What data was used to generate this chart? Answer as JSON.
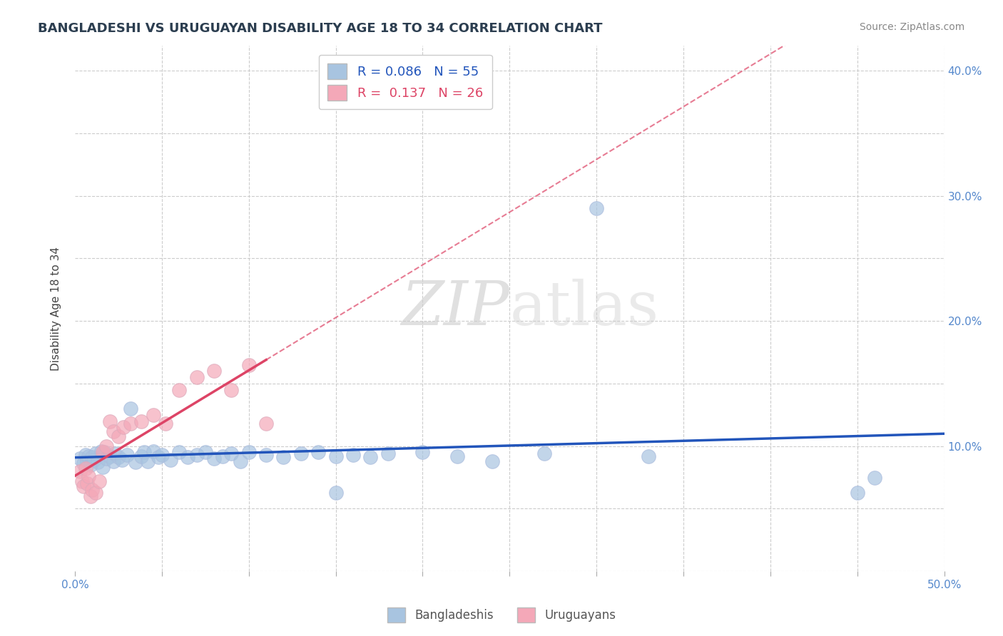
{
  "title": "BANGLADESHI VS URUGUAYAN DISABILITY AGE 18 TO 34 CORRELATION CHART",
  "source_text": "Source: ZipAtlas.com",
  "ylabel": "Disability Age 18 to 34",
  "xlim": [
    0.0,
    0.5
  ],
  "ylim": [
    0.0,
    0.42
  ],
  "xticks": [
    0.0,
    0.05,
    0.1,
    0.15,
    0.2,
    0.25,
    0.3,
    0.35,
    0.4,
    0.45,
    0.5
  ],
  "yticks": [
    0.0,
    0.05,
    0.1,
    0.15,
    0.2,
    0.25,
    0.3,
    0.35,
    0.4
  ],
  "r_bangladeshi": 0.086,
  "n_bangladeshi": 55,
  "r_uruguayan": 0.137,
  "n_uruguayan": 26,
  "bangladeshi_color": "#a8c4e0",
  "uruguayan_color": "#f4a8b8",
  "bangladeshi_line_color": "#2255bb",
  "uruguayan_line_color": "#dd4466",
  "watermark_zip": "ZIP",
  "watermark_atlas": "atlas",
  "background_color": "#ffffff",
  "grid_color": "#cccccc",
  "bangladeshis_scatter_x": [
    0.003,
    0.005,
    0.006,
    0.007,
    0.008,
    0.009,
    0.01,
    0.011,
    0.012,
    0.013,
    0.015,
    0.016,
    0.017,
    0.018,
    0.02,
    0.022,
    0.023,
    0.025,
    0.027,
    0.03,
    0.032,
    0.035,
    0.038,
    0.04,
    0.042,
    0.045,
    0.048,
    0.05,
    0.055,
    0.06,
    0.065,
    0.07,
    0.075,
    0.08,
    0.085,
    0.09,
    0.095,
    0.1,
    0.11,
    0.12,
    0.13,
    0.14,
    0.15,
    0.16,
    0.17,
    0.18,
    0.2,
    0.22,
    0.24,
    0.27,
    0.3,
    0.33,
    0.15,
    0.45,
    0.46
  ],
  "bangladeshis_scatter_y": [
    0.09,
    0.086,
    0.093,
    0.088,
    0.092,
    0.085,
    0.091,
    0.089,
    0.094,
    0.087,
    0.096,
    0.083,
    0.095,
    0.09,
    0.092,
    0.088,
    0.094,
    0.091,
    0.089,
    0.093,
    0.13,
    0.087,
    0.092,
    0.095,
    0.088,
    0.096,
    0.091,
    0.093,
    0.089,
    0.095,
    0.091,
    0.093,
    0.095,
    0.09,
    0.092,
    0.094,
    0.088,
    0.095,
    0.093,
    0.091,
    0.094,
    0.095,
    0.092,
    0.093,
    0.091,
    0.094,
    0.095,
    0.092,
    0.088,
    0.094,
    0.29,
    0.092,
    0.063,
    0.063,
    0.075
  ],
  "uruguayans_scatter_x": [
    0.003,
    0.004,
    0.005,
    0.006,
    0.007,
    0.008,
    0.009,
    0.01,
    0.012,
    0.014,
    0.016,
    0.018,
    0.02,
    0.022,
    0.025,
    0.028,
    0.032,
    0.038,
    0.045,
    0.052,
    0.06,
    0.07,
    0.08,
    0.09,
    0.1,
    0.11
  ],
  "uruguayans_scatter_y": [
    0.08,
    0.072,
    0.068,
    0.082,
    0.07,
    0.076,
    0.06,
    0.065,
    0.063,
    0.072,
    0.095,
    0.1,
    0.12,
    0.112,
    0.108,
    0.115,
    0.118,
    0.12,
    0.125,
    0.118,
    0.145,
    0.155,
    0.16,
    0.145,
    0.165,
    0.118
  ]
}
